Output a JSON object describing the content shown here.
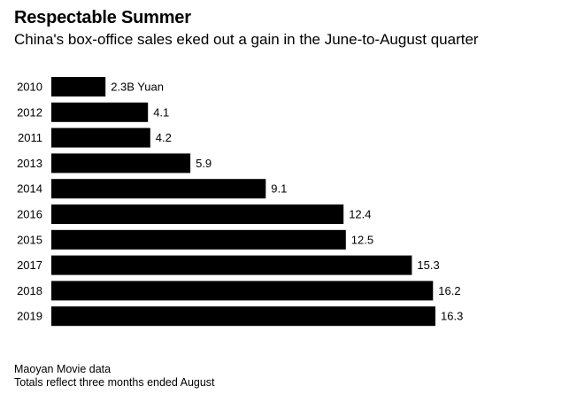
{
  "header": {
    "title": "Respectable Summer",
    "subtitle": "China's box-office sales eked out a gain in the June-to-August quarter"
  },
  "footer": {
    "source": "Maoyan Movie data",
    "note": "Totals reflect three months ended August"
  },
  "colors": {
    "bar": "#000000",
    "text": "#000000",
    "background": "#ffffff"
  },
  "chart_data": {
    "type": "bar",
    "orientation": "horizontal",
    "title": "Respectable Summer",
    "subtitle": "China's box-office sales eked out a gain in the June-to-August quarter",
    "categories": [
      "2010",
      "2012",
      "2011",
      "2013",
      "2014",
      "2016",
      "2015",
      "2017",
      "2018",
      "2019"
    ],
    "values": [
      2.3,
      4.1,
      4.2,
      5.9,
      9.1,
      12.4,
      12.5,
      15.3,
      16.2,
      16.3
    ],
    "value_labels": [
      "2.3B Yuan",
      "4.1",
      "4.2",
      "5.9",
      "9.1",
      "12.4",
      "12.5",
      "15.3",
      "16.2",
      "16.3"
    ],
    "unit": "B Yuan",
    "xlim": [
      0,
      16.3
    ],
    "grid": false,
    "legend": "none"
  }
}
